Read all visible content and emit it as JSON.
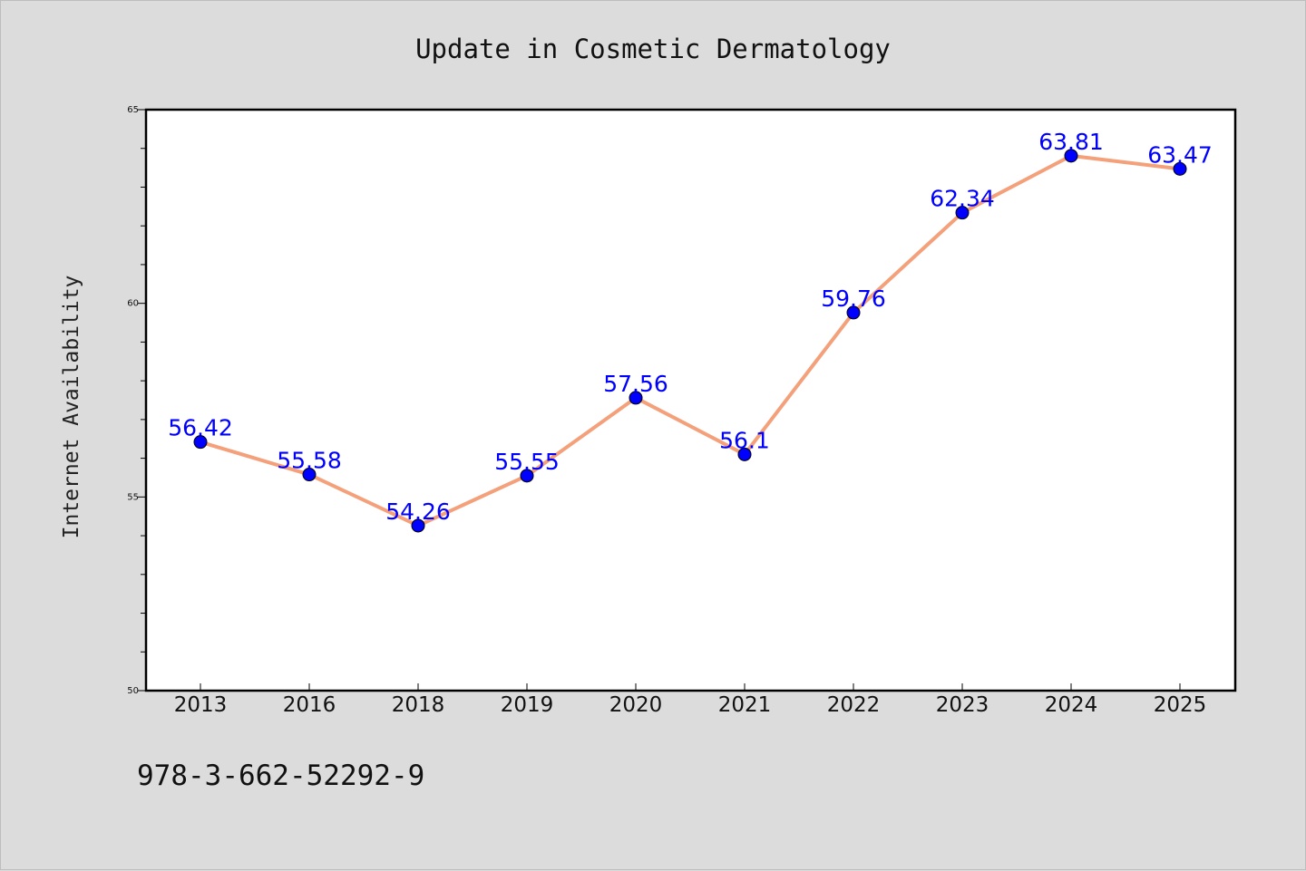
{
  "chart_data": {
    "type": "line",
    "title": "Update in Cosmetic Dermatology",
    "xlabel": "",
    "ylabel": "Internet Availability",
    "categories": [
      "2013",
      "2016",
      "2018",
      "2019",
      "2020",
      "2021",
      "2022",
      "2023",
      "2024",
      "2025"
    ],
    "series": [
      {
        "values": [
          56.42,
          55.58,
          54.26,
          55.55,
          57.56,
          56.1,
          59.76,
          62.34,
          63.81,
          63.47
        ],
        "data_labels": [
          "56.42",
          "55.58",
          "54.26",
          "55.55",
          "57.56",
          "56.1",
          "59.76",
          "62.34",
          "63.81",
          "63.47"
        ],
        "line_color": "#f4a07a",
        "marker_color": "#0000ff"
      }
    ],
    "ylim": [
      50,
      65
    ],
    "yticks": [
      "50",
      "55",
      "60",
      "65"
    ],
    "grid": false,
    "legend": "none"
  },
  "footnote": "978-3-662-52292-9"
}
